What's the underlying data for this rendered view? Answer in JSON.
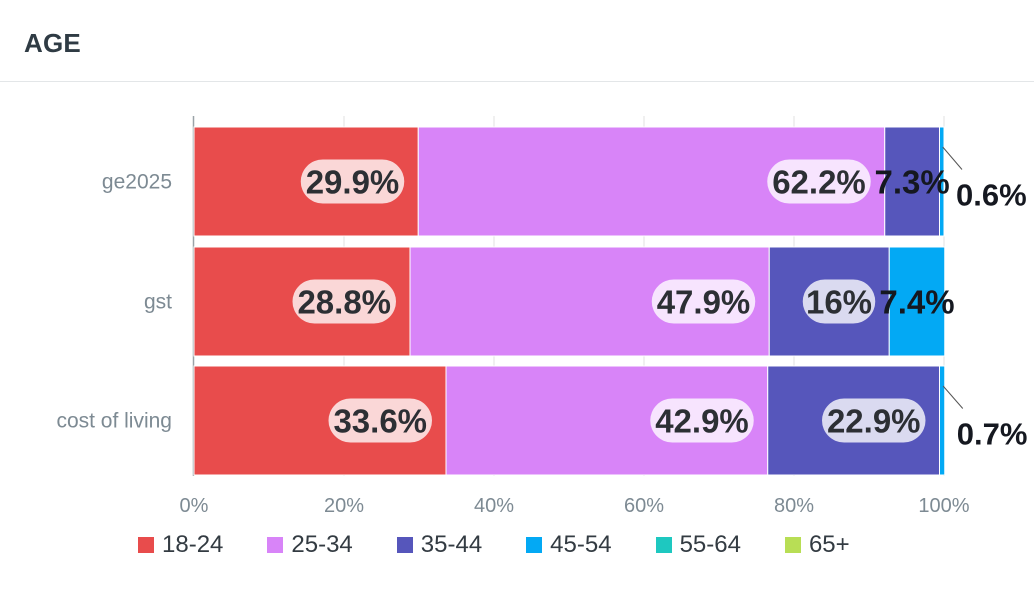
{
  "widget": {
    "title": "AGE"
  },
  "chart_data": {
    "type": "bar",
    "orientation": "horizontal",
    "stacked": true,
    "categories": [
      "ge2025",
      "gst",
      "cost of living"
    ],
    "series": [
      {
        "name": "18-24",
        "color": "#e84c4c",
        "values": [
          29.9,
          28.8,
          33.6
        ],
        "labels": [
          "29.9%",
          "28.8%",
          "33.6%"
        ]
      },
      {
        "name": "25-34",
        "color": "#d884f8",
        "values": [
          62.2,
          47.9,
          42.9
        ],
        "labels": [
          "62.2%",
          "47.9%",
          "42.9%"
        ]
      },
      {
        "name": "35-44",
        "color": "#5656bb",
        "values": [
          7.3,
          16.0,
          22.9
        ],
        "labels": [
          "7.3%",
          "16%",
          "22.9%"
        ]
      },
      {
        "name": "45-54",
        "color": "#03a9f4",
        "values": [
          0.6,
          7.4,
          0.7
        ],
        "labels": [
          "0.6%",
          "7.4%",
          "0.7%"
        ]
      },
      {
        "name": "55-64",
        "color": "#1ec8c0",
        "values": [
          0,
          0,
          0
        ],
        "labels": [
          "",
          "",
          ""
        ]
      },
      {
        "name": "65+",
        "color": "#b8de55",
        "values": [
          0,
          0,
          0
        ],
        "labels": [
          "",
          "",
          ""
        ]
      }
    ],
    "x_ticks": [
      "0%",
      "20%",
      "40%",
      "60%",
      "80%",
      "100%"
    ],
    "xlim": [
      0,
      100
    ],
    "grid": true,
    "legend_position": "bottom"
  }
}
